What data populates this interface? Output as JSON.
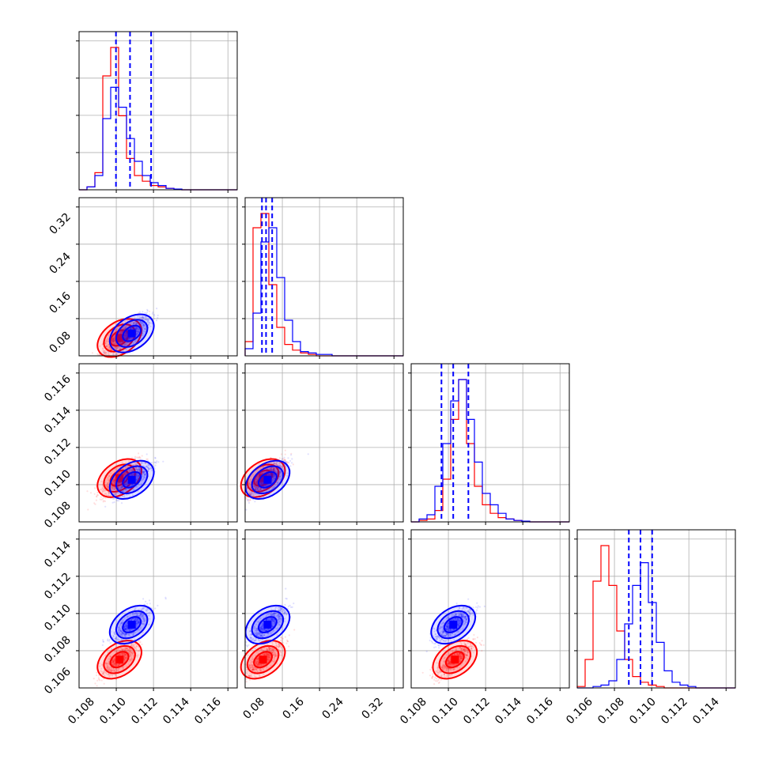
{
  "colors": {
    "series_a": "#0000ff",
    "series_b": "#ff0000",
    "grid": "#b0b0b0"
  },
  "chart_data": {
    "type": "corner",
    "grid": true,
    "series": [
      {
        "color": "#0000ff"
      },
      {
        "color": "#ff0000"
      }
    ],
    "parameters": [
      {
        "range": [
          0.1075,
          0.1165
        ],
        "ticks": [
          "0.108",
          "0.110",
          "0.112",
          "0.114",
          "0.116"
        ],
        "hist_label_range": [
          0.1076,
          0.1166
        ]
      },
      {
        "range": [
          0.03,
          0.34
        ],
        "ticks": [
          "0.08",
          "0.16",
          "0.24",
          "0.32"
        ]
      },
      {
        "range": [
          0.1068,
          0.1162
        ],
        "ticks": [
          "0.108",
          "0.110",
          "0.112",
          "0.114",
          "0.116"
        ]
      },
      {
        "range": [
          0.1055,
          0.115
        ],
        "ticks": [
          "0.106",
          "0.108",
          "0.110",
          "0.112",
          "0.114"
        ]
      }
    ],
    "quantile_lines": [
      [
        0.1096,
        0.1104,
        0.1116
      ],
      [
        0.063,
        0.071,
        0.083
      ],
      [
        0.1086,
        0.1093,
        0.1102
      ],
      [
        0.1086,
        0.1093,
        0.11
      ]
    ],
    "histograms": [
      {
        "bins": [
          0.1076,
          0.1166
        ],
        "series_a": [
          0,
          0.02,
          0.1,
          0.5,
          0.72,
          0.58,
          0.36,
          0.2,
          0.1,
          0.05,
          0.03,
          0.01,
          0.005,
          0,
          0,
          0,
          0,
          0,
          0,
          0
        ],
        "series_b": [
          0,
          0.02,
          0.12,
          0.8,
          1.0,
          0.52,
          0.22,
          0.1,
          0.06,
          0.03,
          0.02,
          0.01,
          0.005,
          0,
          0,
          0,
          0,
          0,
          0,
          0
        ]
      },
      {
        "bins": [
          0.03,
          0.34
        ],
        "series_a": [
          0.05,
          0.3,
          0.8,
          0.9,
          0.55,
          0.25,
          0.1,
          0.03,
          0.02,
          0.01,
          0.01,
          0,
          0,
          0,
          0,
          0,
          0,
          0,
          0,
          0
        ],
        "series_b": [
          0.1,
          0.9,
          1.0,
          0.5,
          0.2,
          0.08,
          0.04,
          0.02,
          0.01,
          0,
          0,
          0,
          0,
          0,
          0,
          0,
          0,
          0,
          0,
          0
        ]
      },
      {
        "bins": [
          0.1068,
          0.1162
        ],
        "series_a": [
          0,
          0.02,
          0.05,
          0.25,
          0.55,
          0.85,
          1.0,
          0.72,
          0.42,
          0.2,
          0.12,
          0.06,
          0.02,
          0.01,
          0.005,
          0,
          0,
          0,
          0,
          0
        ],
        "series_b": [
          0,
          0.01,
          0.02,
          0.08,
          0.3,
          0.72,
          1.0,
          0.55,
          0.25,
          0.12,
          0.06,
          0.03,
          0.02,
          0.01,
          0.005,
          0,
          0,
          0,
          0,
          0
        ]
      },
      {
        "bins": [
          0.1055,
          0.115
        ],
        "series_a": [
          0,
          0,
          0.01,
          0.02,
          0.05,
          0.2,
          0.45,
          0.72,
          0.88,
          0.6,
          0.32,
          0.12,
          0.04,
          0.02,
          0.01,
          0,
          0,
          0,
          0,
          0
        ],
        "series_b": [
          0.01,
          0.2,
          0.75,
          1.0,
          0.72,
          0.4,
          0.2,
          0.08,
          0.04,
          0.02,
          0.01,
          0,
          0,
          0,
          0,
          0,
          0,
          0,
          0,
          0
        ]
      }
    ],
    "density_centers": {
      "series_a": [
        0.1105,
        0.074,
        0.1093,
        0.1093
      ],
      "series_b": [
        0.1098,
        0.065,
        0.1094,
        0.1072
      ]
    }
  }
}
